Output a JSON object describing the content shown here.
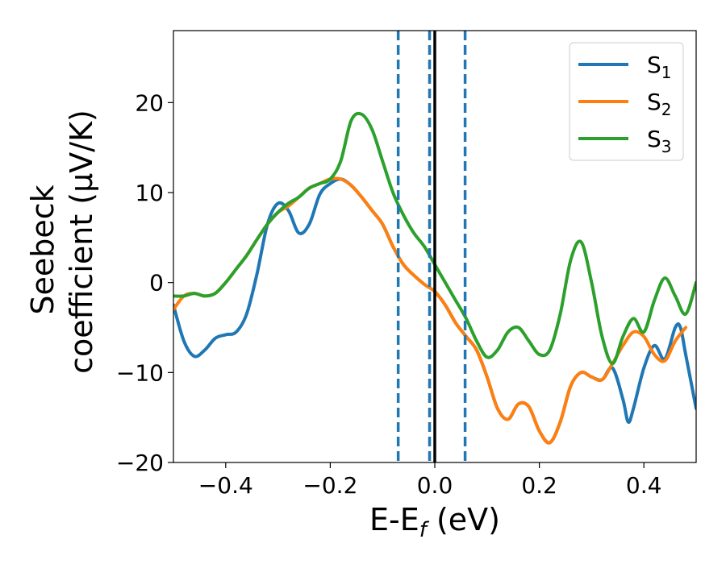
{
  "chart_data": {
    "type": "line",
    "xlabel": "E-E",
    "xlabel_sub": "f",
    "xlabel_unit": " (eV)",
    "ylabel_line1": "Seebeck",
    "ylabel_line2": "coefficient  (μV/K)",
    "xlim": [
      -0.5,
      0.5
    ],
    "ylim": [
      -20,
      28
    ],
    "x_ticks": [
      -0.4,
      -0.2,
      0.0,
      0.2,
      0.4
    ],
    "x_tick_labels": [
      "−0.4",
      "−0.2",
      "0.0",
      "0.2",
      "0.4"
    ],
    "y_ticks": [
      -20,
      -10,
      0,
      10,
      20
    ],
    "y_tick_labels": [
      "−20",
      "−10",
      "0",
      "10",
      "20"
    ],
    "grid": false,
    "legend_position": "top-right",
    "legend_entries": [
      {
        "base": "S",
        "sub": "1"
      },
      {
        "base": "S",
        "sub": "2"
      },
      {
        "base": "S",
        "sub": "3"
      }
    ],
    "vertical_lines": [
      {
        "x": -0.07,
        "style": "dashed",
        "color": "#1f77b4"
      },
      {
        "x": -0.01,
        "style": "dashed",
        "color": "#1f77b4"
      },
      {
        "x": 0.0,
        "style": "solid",
        "color": "#000000"
      },
      {
        "x": 0.058,
        "style": "dashed",
        "color": "#1f77b4"
      }
    ],
    "series": [
      {
        "name": "S1",
        "color": "#1f77b4",
        "x": [
          -0.5,
          -0.48,
          -0.46,
          -0.44,
          -0.42,
          -0.4,
          -0.38,
          -0.36,
          -0.34,
          -0.32,
          -0.3,
          -0.28,
          -0.26,
          -0.24,
          -0.22,
          -0.2,
          -0.18,
          -0.16,
          -0.14,
          -0.12,
          -0.1,
          -0.08,
          -0.06,
          -0.04,
          -0.02,
          0.0,
          0.02,
          0.04,
          0.06,
          0.08,
          0.1,
          0.12,
          0.14,
          0.16,
          0.18,
          0.2,
          0.22,
          0.24,
          0.26,
          0.28,
          0.3,
          0.32,
          0.34,
          0.36,
          0.37,
          0.38,
          0.4,
          0.42,
          0.44,
          0.46,
          0.47,
          0.48,
          0.5
        ],
        "y": [
          -2.5,
          -6.5,
          -8.2,
          -7.5,
          -6.2,
          -5.8,
          -5.5,
          -3.5,
          1.0,
          6.5,
          8.8,
          8.0,
          5.5,
          6.5,
          9.8,
          11.0,
          11.5,
          10.8,
          9.5,
          8.0,
          6.5,
          4.0,
          2.0,
          0.8,
          -0.2,
          -1.0,
          -2.5,
          -4.5,
          -6.0,
          -7.5,
          -10.5,
          -14.0,
          -15.2,
          -13.5,
          -13.8,
          -16.5,
          -17.8,
          -15.5,
          -11.5,
          -10.0,
          -10.5,
          -10.8,
          -9.5,
          -13.0,
          -15.5,
          -14.0,
          -9.5,
          -7.0,
          -8.5,
          -5.0,
          -5.0,
          -8.0,
          -14.0
        ]
      },
      {
        "name": "S2",
        "color": "#ff7f0e",
        "x": [
          -0.5,
          -0.48,
          -0.46,
          -0.44,
          -0.42,
          -0.4,
          -0.38,
          -0.36,
          -0.34,
          -0.32,
          -0.3,
          -0.28,
          -0.26,
          -0.24,
          -0.22,
          -0.2,
          -0.18,
          -0.16,
          -0.14,
          -0.12,
          -0.1,
          -0.08,
          -0.06,
          -0.04,
          -0.02,
          0.0,
          0.02,
          0.04,
          0.06,
          0.08,
          0.1,
          0.12,
          0.14,
          0.16,
          0.18,
          0.2,
          0.22,
          0.24,
          0.26,
          0.28,
          0.3,
          0.32,
          0.34,
          0.36,
          0.38,
          0.4,
          0.42,
          0.44,
          0.46,
          0.48
        ],
        "y": [
          -3.0,
          -1.5,
          -1.2,
          -1.5,
          -1.2,
          0.0,
          1.5,
          3.0,
          4.8,
          6.5,
          7.8,
          8.5,
          9.5,
          10.5,
          11.0,
          11.5,
          11.5,
          10.8,
          9.5,
          8.0,
          6.5,
          4.0,
          2.0,
          0.8,
          -0.2,
          -1.0,
          -2.5,
          -4.5,
          -6.0,
          -7.5,
          -10.5,
          -14.0,
          -15.2,
          -13.5,
          -13.8,
          -16.5,
          -17.8,
          -15.5,
          -11.5,
          -10.0,
          -10.5,
          -10.8,
          -9.0,
          -7.0,
          -5.5,
          -6.0,
          -8.0,
          -8.7,
          -6.5,
          -5.0
        ]
      },
      {
        "name": "S3",
        "color": "#2ca02c",
        "x": [
          -0.5,
          -0.48,
          -0.46,
          -0.44,
          -0.42,
          -0.4,
          -0.38,
          -0.36,
          -0.34,
          -0.32,
          -0.3,
          -0.28,
          -0.26,
          -0.24,
          -0.22,
          -0.2,
          -0.18,
          -0.16,
          -0.14,
          -0.12,
          -0.1,
          -0.08,
          -0.06,
          -0.04,
          -0.02,
          0.0,
          0.02,
          0.04,
          0.06,
          0.08,
          0.1,
          0.12,
          0.14,
          0.16,
          0.18,
          0.2,
          0.22,
          0.24,
          0.26,
          0.28,
          0.3,
          0.32,
          0.34,
          0.36,
          0.38,
          0.4,
          0.42,
          0.44,
          0.46,
          0.48,
          0.5
        ],
        "y": [
          -1.5,
          -1.5,
          -1.2,
          -1.5,
          -1.2,
          0.0,
          1.5,
          3.0,
          4.8,
          6.5,
          7.8,
          8.8,
          9.5,
          10.5,
          11.0,
          11.5,
          13.5,
          18.0,
          18.7,
          17.0,
          13.5,
          10.0,
          7.5,
          5.5,
          4.0,
          2.0,
          0.0,
          -2.0,
          -4.0,
          -6.5,
          -8.3,
          -7.5,
          -5.5,
          -5.0,
          -6.5,
          -8.0,
          -7.5,
          -3.5,
          2.5,
          4.5,
          0.0,
          -6.0,
          -9.0,
          -6.0,
          -4.0,
          -5.5,
          -2.0,
          0.5,
          -1.5,
          -3.5,
          0.0
        ]
      }
    ]
  }
}
